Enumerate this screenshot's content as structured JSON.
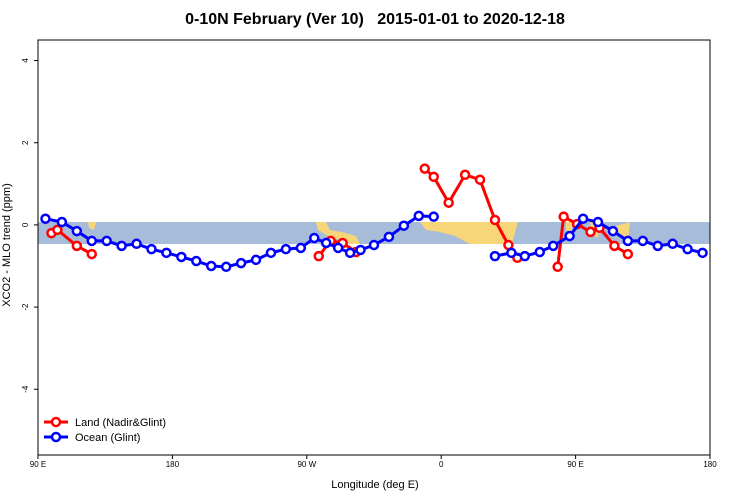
{
  "chart_data": {
    "type": "line",
    "title": "0-10N February (Ver 10)   2015-01-01 to 2020-12-18",
    "x_label": "Longitude (deg E)",
    "y_label": "XCO2 - MLO trend (ppm)",
    "xlim": [
      90,
      540
    ],
    "ylim": [
      -5.6,
      4.5
    ],
    "xticks": [
      {
        "value": 90,
        "label": "90 E"
      },
      {
        "value": 180,
        "label": "180"
      },
      {
        "value": 270,
        "label": "90 W"
      },
      {
        "value": 360,
        "label": "0"
      },
      {
        "value": 450,
        "label": "90 E"
      },
      {
        "value": 540,
        "label": "180"
      }
    ],
    "yticks": [
      -4,
      -2,
      0,
      2,
      4
    ],
    "legend": "bottom-left",
    "series": [
      {
        "name": "Land (Nadir&Glint)",
        "color": "#ff0000",
        "x": [
          99,
          103,
          116,
          126,
          null,
          278,
          286,
          294,
          303,
          null,
          349,
          355,
          365,
          376,
          386,
          396,
          405,
          411,
          null,
          438,
          442,
          451,
          460,
          466,
          476,
          485
        ],
        "values": [
          -0.2,
          -0.12,
          -0.51,
          -0.71,
          null,
          -0.76,
          -0.39,
          -0.44,
          -0.66,
          null,
          1.37,
          1.17,
          0.54,
          1.22,
          1.1,
          0.12,
          -0.49,
          -0.8,
          null,
          -1.02,
          0.2,
          0.02,
          -0.17,
          -0.07,
          -0.51,
          -0.71
        ]
      },
      {
        "name": "Ocean (Glint)",
        "color": "#0000ff",
        "x": [
          95,
          106,
          116,
          126,
          136,
          146,
          156,
          166,
          176,
          186,
          196,
          206,
          216,
          226,
          236,
          246,
          256,
          266,
          275,
          283,
          291,
          299,
          306,
          315,
          325,
          335,
          345,
          355,
          null,
          396,
          407,
          416,
          426,
          435,
          446,
          455,
          465,
          475,
          485,
          495,
          505,
          515,
          525,
          535
        ],
        "values": [
          0.15,
          0.07,
          -0.15,
          -0.39,
          -0.39,
          -0.51,
          -0.46,
          -0.59,
          -0.68,
          -0.78,
          -0.88,
          -1.0,
          -1.02,
          -0.93,
          -0.85,
          -0.68,
          -0.59,
          -0.56,
          -0.32,
          -0.44,
          -0.56,
          -0.68,
          -0.61,
          -0.49,
          -0.29,
          -0.02,
          0.22,
          0.2,
          null,
          -0.76,
          -0.68,
          -0.76,
          -0.66,
          -0.51,
          -0.27,
          0.15,
          0.07,
          -0.15,
          -0.39,
          -0.39,
          -0.51,
          -0.46,
          -0.59,
          -0.68
        ]
      }
    ]
  }
}
